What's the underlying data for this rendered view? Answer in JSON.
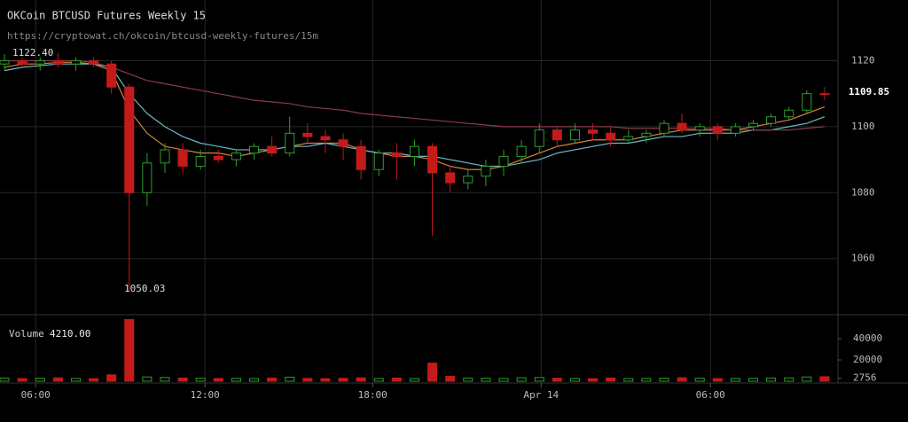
{
  "chart_data": {
    "type": "candlestick",
    "title": "OKCoin BTCUSD Futures Weekly 15",
    "subtitle": "https://cryptowat.ch/okcoin/btcusd-weekly-futures/15m",
    "annotations": [
      "1122.40",
      "1050.03"
    ],
    "last_price_label": "1109.85",
    "volume_title": "Volume",
    "volume_label": "4210.00",
    "up_color": "#2e9e2e",
    "down_color": "#c41a1a",
    "x": [
      0,
      1,
      2,
      3,
      4,
      5,
      6,
      7,
      8,
      9,
      10,
      11,
      12,
      13,
      14,
      15,
      16,
      17,
      18,
      19,
      20,
      21,
      22,
      23,
      24,
      25,
      26,
      27,
      28,
      29,
      30,
      31,
      32,
      33,
      34,
      35,
      36,
      37,
      38,
      39,
      40,
      41,
      42,
      43,
      44,
      45,
      46
    ],
    "open": [
      1119,
      1120,
      1119,
      1120,
      1119,
      1120,
      1119,
      1112,
      1080,
      1089,
      1093,
      1088,
      1091,
      1090,
      1092,
      1094,
      1092,
      1098,
      1097,
      1096,
      1094,
      1087,
      1092,
      1091,
      1094,
      1086,
      1083,
      1085,
      1088,
      1091,
      1094,
      1099,
      1096,
      1099,
      1098,
      1096,
      1097,
      1098,
      1101,
      1099,
      1100,
      1098,
      1100,
      1101,
      1103,
      1105,
      1110
    ],
    "high": [
      1122,
      1121,
      1121,
      1122.4,
      1121,
      1121,
      1120,
      1113,
      1092,
      1095,
      1095,
      1093,
      1093,
      1093,
      1095,
      1097,
      1103,
      1101,
      1099,
      1098,
      1096,
      1093,
      1095,
      1096,
      1095,
      1088,
      1087,
      1090,
      1093,
      1096,
      1101,
      1100,
      1101,
      1101,
      1100,
      1099,
      1099,
      1102,
      1104,
      1101,
      1101,
      1101,
      1102,
      1104,
      1106,
      1111,
      1112
    ],
    "low": [
      1117,
      1118,
      1117,
      1118,
      1117,
      1118,
      1110,
      1050.03,
      1076,
      1086,
      1086,
      1087,
      1089,
      1088,
      1090,
      1091,
      1091,
      1095,
      1092,
      1090,
      1084,
      1085,
      1084,
      1088,
      1067,
      1080,
      1081,
      1082,
      1085,
      1089,
      1092,
      1094,
      1095,
      1096,
      1094,
      1095,
      1095,
      1097,
      1098,
      1097,
      1096,
      1097,
      1099,
      1100,
      1102,
      1104,
      1108
    ],
    "close": [
      1120,
      1119,
      1120,
      1119,
      1120,
      1119,
      1112,
      1080,
      1089,
      1093,
      1088,
      1091,
      1090,
      1092,
      1094,
      1092,
      1098,
      1097,
      1096,
      1094,
      1087,
      1092,
      1091,
      1094,
      1086,
      1083,
      1085,
      1088,
      1091,
      1094,
      1099,
      1096,
      1099,
      1098,
      1096,
      1097,
      1098,
      1101,
      1099,
      1100,
      1098,
      1100,
      1101,
      1103,
      1105,
      1110,
      1109.85
    ],
    "volume": [
      3000,
      2500,
      2800,
      3200,
      2600,
      2400,
      6000,
      58000,
      4000,
      3500,
      3000,
      2800,
      2600,
      2700,
      2500,
      3000,
      3800,
      2600,
      2400,
      2700,
      3200,
      2600,
      3000,
      2500,
      17000,
      4500,
      3000,
      2800,
      2600,
      3200,
      3500,
      2800,
      2600,
      2400,
      3000,
      2500,
      2600,
      2900,
      3300,
      2800,
      2500,
      2600,
      2700,
      3000,
      3100,
      4000,
      4210
    ],
    "overlays": [
      {
        "color": "#d2843a",
        "values": [
          1118,
          1119,
          1119,
          1119.5,
          1119.5,
          1119,
          1117,
          1105,
          1098,
          1094,
          1093,
          1092,
          1092,
          1091,
          1092,
          1093,
          1094,
          1095,
          1095,
          1095,
          1093,
          1092,
          1091,
          1091,
          1090,
          1088,
          1087,
          1087,
          1088,
          1090,
          1092,
          1094,
          1095,
          1096,
          1096,
          1096,
          1097,
          1098,
          1099,
          1099,
          1099,
          1099,
          1100,
          1101,
          1102,
          1104,
          1106
        ]
      },
      {
        "color": "#6fb8c8",
        "values": [
          1117,
          1118,
          1118.5,
          1119,
          1119,
          1119,
          1118,
          1110,
          1104,
          1100,
          1097,
          1095,
          1094,
          1093,
          1093,
          1093,
          1094,
          1094,
          1095,
          1094,
          1093,
          1092,
          1092,
          1091,
          1091,
          1090,
          1089,
          1088,
          1088,
          1089,
          1090,
          1092,
          1093,
          1094,
          1095,
          1095,
          1096,
          1097,
          1097,
          1098,
          1098,
          1098,
          1099,
          1099,
          1100,
          1101,
          1103
        ]
      },
      {
        "color": "#8a3a48",
        "values": [
          1120,
          1120,
          1120,
          1120,
          1120,
          1119.5,
          1118,
          1116,
          1114,
          1113,
          1112,
          1111,
          1110,
          1109,
          1108,
          1107.5,
          1107,
          1106,
          1105.5,
          1105,
          1104,
          1103.5,
          1103,
          1102.5,
          1102,
          1101.5,
          1101,
          1100.5,
          1100,
          1100,
          1100,
          1100,
          1100,
          1100,
          1100,
          1099.5,
          1099.5,
          1099.5,
          1099.5,
          1099.5,
          1099.5,
          1099,
          1099,
          1099,
          1099,
          1099.5,
          1100
        ]
      }
    ],
    "xlim": [
      -0.25,
      46.75
    ],
    "xticks": [
      {
        "value": 1.75,
        "label": "06:00"
      },
      {
        "value": 11.25,
        "label": "12:00"
      },
      {
        "value": 20.65,
        "label": "18:00"
      },
      {
        "value": 30.1,
        "label": "Apr 14"
      },
      {
        "value": 39.6,
        "label": "06:00"
      }
    ],
    "ylim": [
      1043.8,
      1138.4
    ],
    "yticks": [
      1060,
      1080,
      1100,
      1120
    ],
    "vol_ylim": [
      0,
      58333
    ],
    "vol_ticks": [
      2756,
      20000,
      40000
    ],
    "grid": true
  }
}
